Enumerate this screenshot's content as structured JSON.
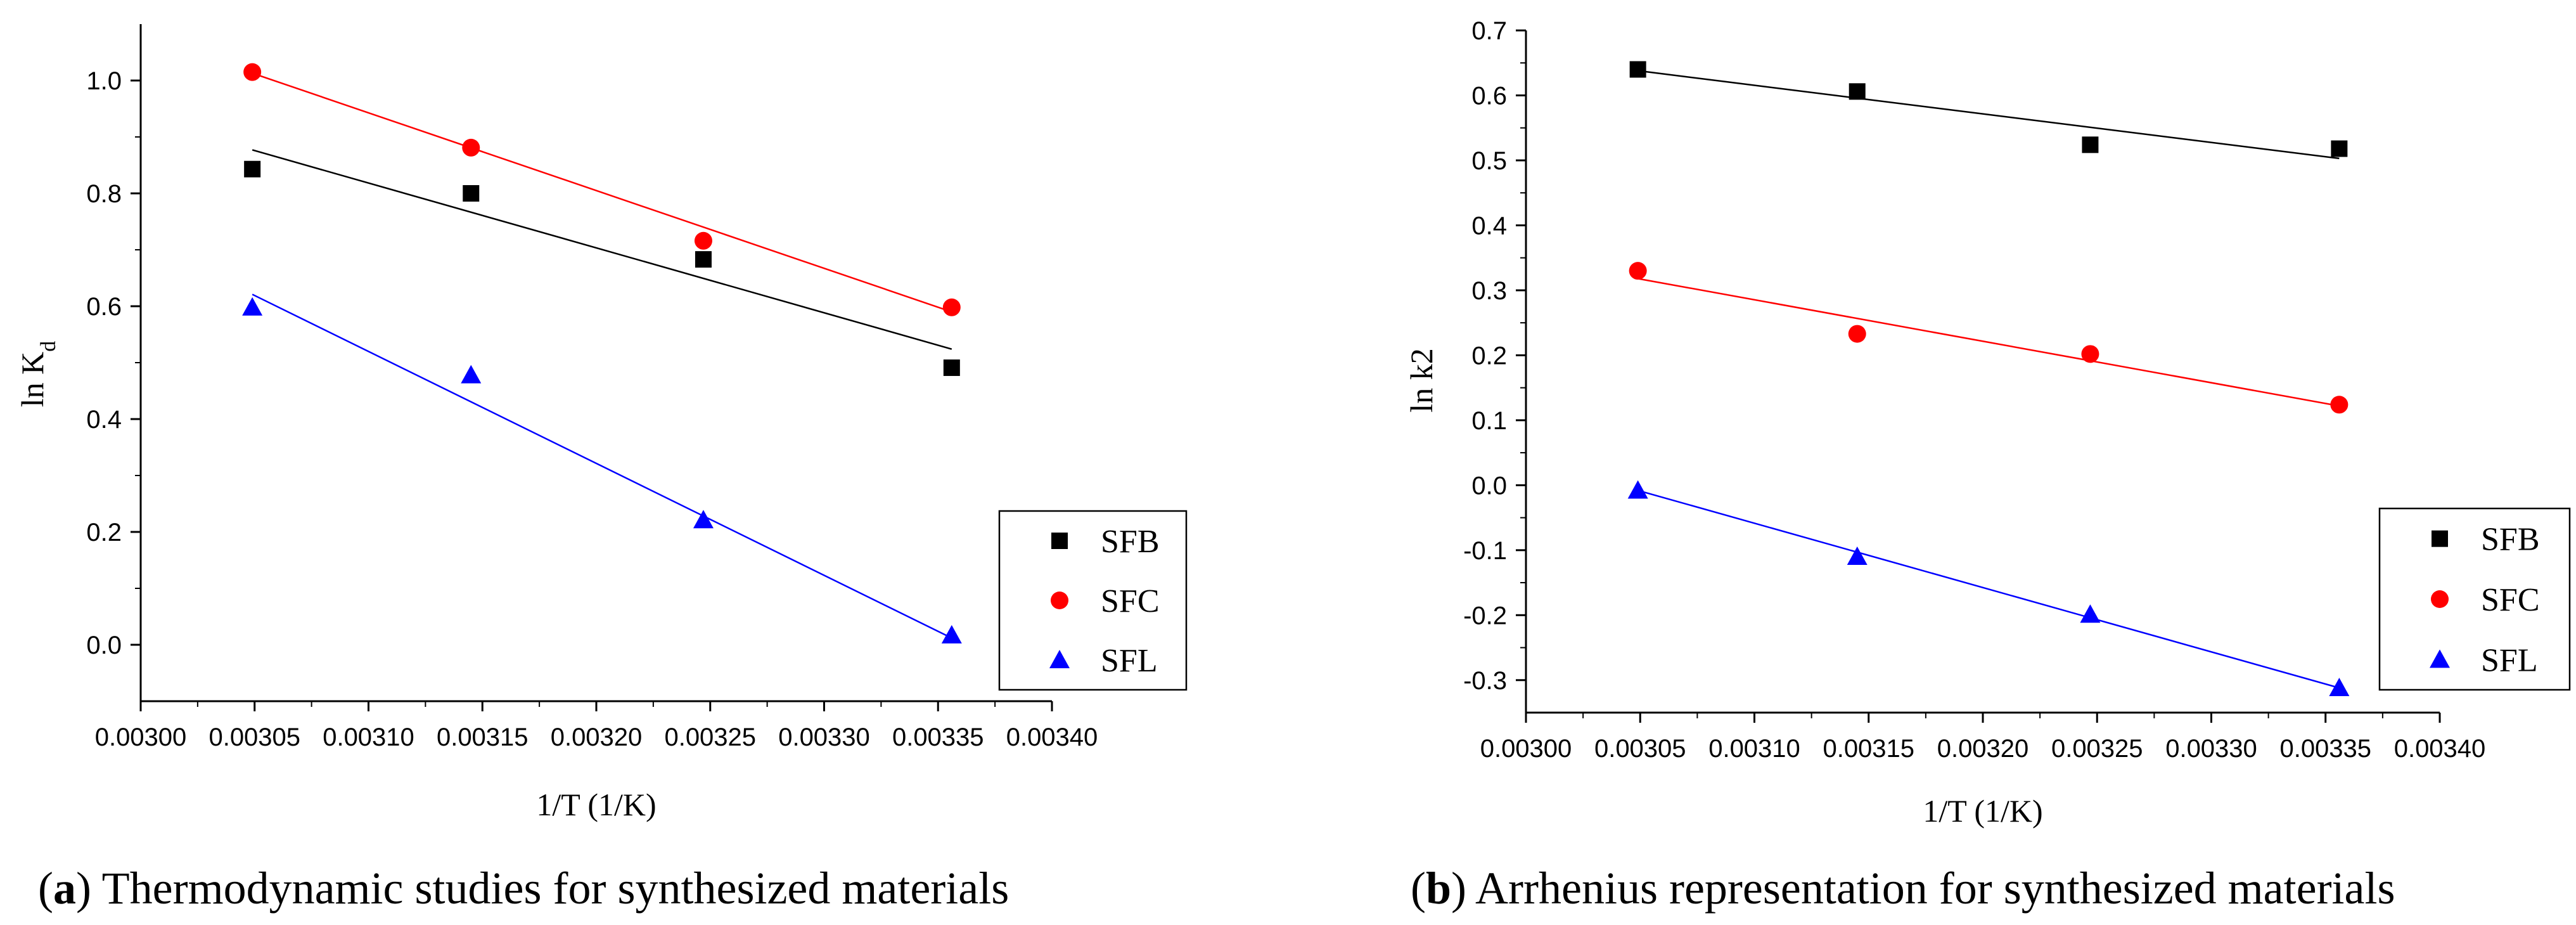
{
  "chart_data": [
    {
      "id": "a",
      "type": "scatter",
      "caption": {
        "letter": "a",
        "text": " Thermodynamic studies for synthesized materials"
      },
      "xlabel": "1/T (1/K)",
      "ylabel": {
        "main": "ln K",
        "sub": "d"
      },
      "xlim": [
        0.003,
        0.0034
      ],
      "ylim": [
        -0.1,
        1.1
      ],
      "xticks": [
        "0.00300",
        "0.00305",
        "0.00310",
        "0.00315",
        "0.00320",
        "0.00325",
        "0.00330",
        "0.00335",
        "0.00340"
      ],
      "xtick_values": [
        0.003,
        0.00305,
        0.0031,
        0.00315,
        0.0032,
        0.00325,
        0.0033,
        0.00335,
        0.0034
      ],
      "yticks": [
        "0.0",
        "0.2",
        "0.4",
        "0.6",
        "0.8",
        "1.0"
      ],
      "ytick_values": [
        0.0,
        0.2,
        0.4,
        0.6,
        0.8,
        1.0
      ],
      "x": [
        0.003049,
        0.003145,
        0.003247,
        0.003356
      ],
      "series": [
        {
          "name": "SFB",
          "marker": "square",
          "color": "#000000",
          "values": [
            0.843,
            0.8,
            0.683,
            0.491
          ],
          "fit": [
            [
              0.003049,
              0.877
            ],
            [
              0.003356,
              0.524
            ]
          ]
        },
        {
          "name": "SFC",
          "marker": "circle",
          "color": "#ff0000",
          "values": [
            1.015,
            0.881,
            0.716,
            0.598
          ],
          "fit": [
            [
              0.003049,
              1.013
            ],
            [
              0.003356,
              0.59
            ]
          ]
        },
        {
          "name": "SFL",
          "marker": "triangle",
          "color": "#0000ff",
          "values": [
            0.598,
            0.478,
            0.221,
            0.017
          ],
          "fit": [
            [
              0.003049,
              0.621
            ],
            [
              0.003356,
              0.012
            ]
          ]
        }
      ],
      "legend": "bottom-right"
    },
    {
      "id": "b",
      "type": "scatter",
      "caption": {
        "letter": "b",
        "text": " Arrhenius representation for synthesized materials"
      },
      "xlabel": "1/T (1/K)",
      "ylabel": {
        "main": "ln k2",
        "sub": ""
      },
      "xlim": [
        0.003,
        0.0034
      ],
      "ylim": [
        -0.35,
        0.7
      ],
      "xticks": [
        "0.00300",
        "0.00305",
        "0.00310",
        "0.00315",
        "0.00320",
        "0.00325",
        "0.00330",
        "0.00335",
        "0.00340"
      ],
      "xtick_values": [
        0.003,
        0.00305,
        0.0031,
        0.00315,
        0.0032,
        0.00325,
        0.0033,
        0.00335,
        0.0034
      ],
      "yticks": [
        "-0.3",
        "-0.2",
        "-0.1",
        "0.0",
        "0.1",
        "0.2",
        "0.3",
        "0.4",
        "0.5",
        "0.6",
        "0.7"
      ],
      "ytick_values": [
        -0.3,
        -0.2,
        -0.1,
        0.0,
        0.1,
        0.2,
        0.3,
        0.4,
        0.5,
        0.6,
        0.7
      ],
      "x": [
        0.003049,
        0.003145,
        0.003247,
        0.003356
      ],
      "series": [
        {
          "name": "SFB",
          "marker": "square",
          "color": "#000000",
          "values": [
            0.64,
            0.606,
            0.524,
            0.518
          ],
          "fit": [
            [
              0.003049,
              0.638
            ],
            [
              0.003356,
              0.503
            ]
          ]
        },
        {
          "name": "SFC",
          "marker": "circle",
          "color": "#ff0000",
          "values": [
            0.33,
            0.233,
            0.202,
            0.124
          ],
          "fit": [
            [
              0.003049,
              0.318
            ],
            [
              0.003356,
              0.122
            ]
          ]
        },
        {
          "name": "SFL",
          "marker": "triangle",
          "color": "#0000ff",
          "values": [
            -0.008,
            -0.11,
            -0.199,
            -0.312
          ],
          "fit": [
            [
              0.003049,
              -0.008
            ],
            [
              0.003356,
              -0.312
            ]
          ]
        }
      ],
      "legend": "bottom-right"
    }
  ]
}
